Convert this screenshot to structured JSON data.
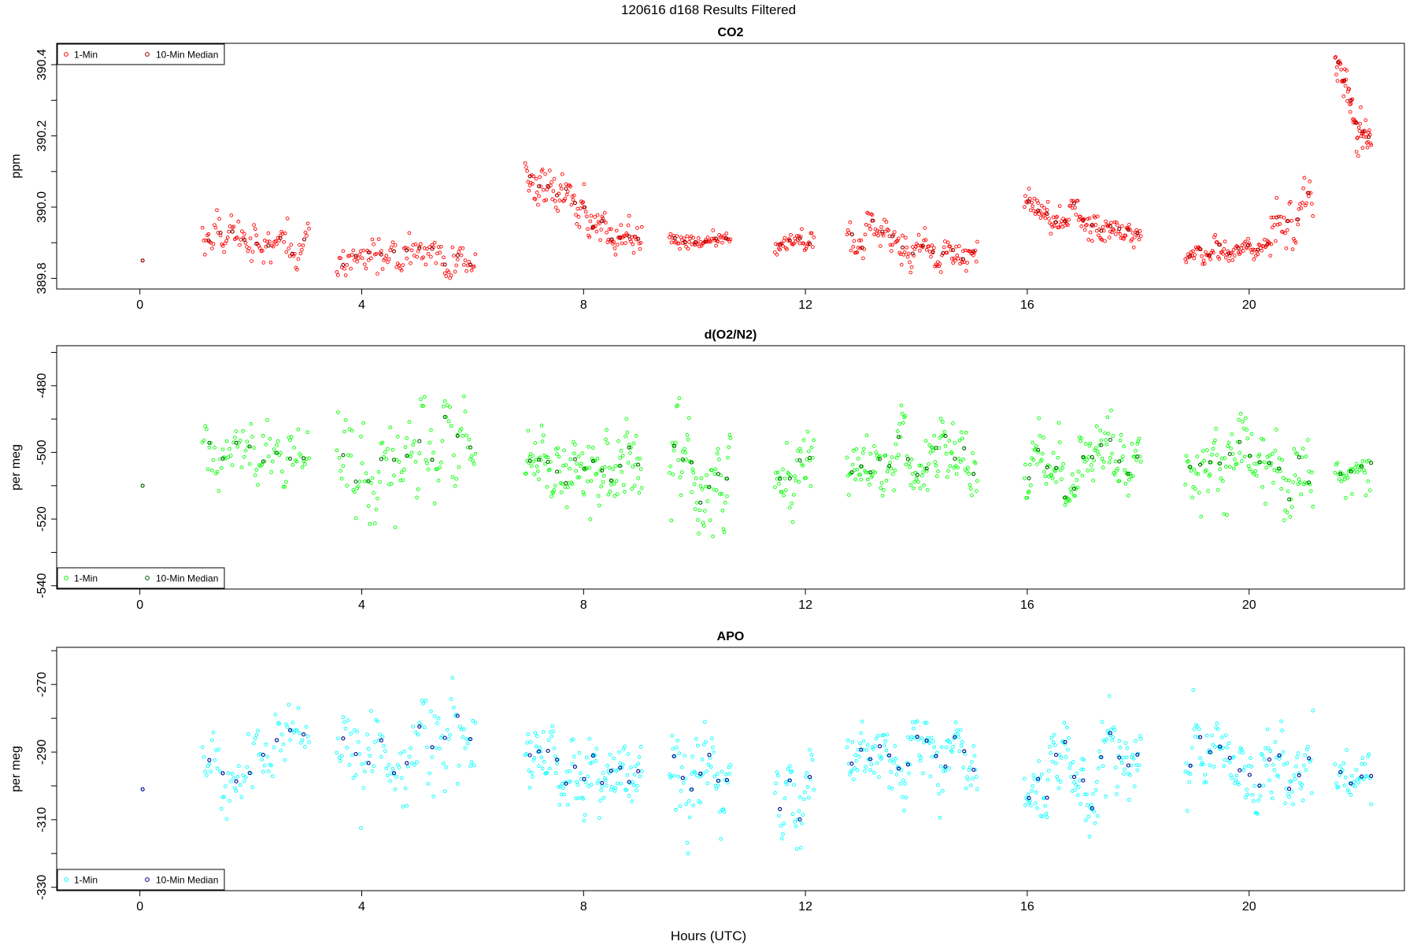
{
  "figure": {
    "title": "120616    d168    Results Filtered",
    "xlabel": "Hours (UTC)"
  },
  "colors": {
    "co2_1min": "#ff0000",
    "co2_median": "#8b0000",
    "o2_1min": "#00ff00",
    "o2_median": "#006400",
    "apo_1min": "#00ffff",
    "apo_median": "#00008b"
  },
  "chart_data": [
    {
      "type": "scatter",
      "title": "CO2",
      "xlabel": "",
      "ylabel": "ppm",
      "xlim": [
        -1.5,
        22.8
      ],
      "ylim": [
        389.77,
        390.46
      ],
      "xticks": [
        "0",
        "4",
        "8",
        "12",
        "16",
        "20"
      ],
      "yticks": [
        "389.8",
        "390.0",
        "390.2",
        "390.4"
      ],
      "legend": {
        "position": "top-left",
        "entries": [
          "1-Min",
          "10-Min Median"
        ]
      },
      "series": [
        {
          "name": "1-Min",
          "segments": [
            {
              "from": 0.05,
              "to": 0.05,
              "n": 1,
              "base": [
                389.85,
                389.85
              ],
              "noise": 0.0
            },
            {
              "from": 1.13,
              "to": 3.05,
              "n": 90,
              "base": [
                389.93,
                389.88
              ],
              "noise": 0.035
            },
            {
              "from": 3.55,
              "to": 6.05,
              "n": 110,
              "base": [
                389.85,
                389.87
              ],
              "noise": 0.03
            },
            {
              "from": 6.95,
              "to": 9.05,
              "n": 130,
              "base": [
                390.08,
                389.9
              ],
              "noise": 0.035
            },
            {
              "from": 9.55,
              "to": 10.65,
              "n": 60,
              "base": [
                389.92,
                389.89
              ],
              "noise": 0.015
            },
            {
              "from": 11.45,
              "to": 12.15,
              "n": 40,
              "base": [
                389.89,
                389.92
              ],
              "noise": 0.02
            },
            {
              "from": 12.75,
              "to": 15.1,
              "n": 130,
              "base": [
                389.92,
                389.86
              ],
              "noise": 0.03
            },
            {
              "from": 15.95,
              "to": 18.05,
              "n": 130,
              "base": [
                390.0,
                389.92
              ],
              "noise": 0.03
            },
            {
              "from": 18.85,
              "to": 20.4,
              "n": 90,
              "base": [
                389.87,
                389.89
              ],
              "noise": 0.02
            },
            {
              "from": 20.4,
              "to": 21.15,
              "n": 40,
              "base": [
                389.9,
                390.06
              ],
              "noise": 0.05
            },
            {
              "from": 21.55,
              "to": 22.2,
              "n": 60,
              "base": [
                390.38,
                390.17
              ],
              "noise": 0.035
            }
          ]
        },
        {
          "name": "10-Min Median",
          "median": true
        }
      ]
    },
    {
      "type": "scatter",
      "title": "d(O2/N2)",
      "xlabel": "",
      "ylabel": "per meg",
      "xlim": [
        -1.5,
        22.8
      ],
      "ylim": [
        -541,
        -468
      ],
      "xticks": [
        "0",
        "4",
        "8",
        "12",
        "16",
        "20"
      ],
      "yticks": [
        "-540",
        "-520",
        "-500",
        "-480"
      ],
      "legend": {
        "position": "bottom-left",
        "entries": [
          "1-Min",
          "10-Min Median"
        ]
      },
      "series": [
        {
          "name": "1-Min",
          "segments": [
            {
              "from": 0.05,
              "to": 0.05,
              "n": 1,
              "base": [
                -510,
                -510
              ],
              "noise": 0.0
            },
            {
              "from": 1.13,
              "to": 3.05,
              "n": 80,
              "base": [
                -503,
                -497
              ],
              "noise": 6
            },
            {
              "from": 3.55,
              "to": 6.05,
              "n": 110,
              "base": [
                -502,
                -500
              ],
              "noise": 9
            },
            {
              "from": 6.95,
              "to": 9.05,
              "n": 130,
              "base": [
                -503,
                -507
              ],
              "noise": 7
            },
            {
              "from": 9.55,
              "to": 10.65,
              "n": 70,
              "base": [
                -510,
                -505
              ],
              "noise": 9
            },
            {
              "from": 11.45,
              "to": 12.15,
              "n": 40,
              "base": [
                -510,
                -505
              ],
              "noise": 7
            },
            {
              "from": 12.75,
              "to": 15.1,
              "n": 140,
              "base": [
                -505,
                -502
              ],
              "noise": 6
            },
            {
              "from": 15.95,
              "to": 18.05,
              "n": 130,
              "base": [
                -507,
                -502
              ],
              "noise": 7
            },
            {
              "from": 18.85,
              "to": 21.15,
              "n": 130,
              "base": [
                -503,
                -508
              ],
              "noise": 8
            },
            {
              "from": 21.55,
              "to": 22.2,
              "n": 35,
              "base": [
                -505,
                -508
              ],
              "noise": 5
            }
          ]
        },
        {
          "name": "10-Min Median",
          "median": true
        }
      ]
    },
    {
      "type": "scatter",
      "title": "APO",
      "xlabel": "Hours (UTC)",
      "ylabel": "per meg",
      "xlim": [
        -1.5,
        22.8
      ],
      "ylim": [
        -331,
        -259
      ],
      "xticks": [
        "0",
        "4",
        "8",
        "12",
        "16",
        "20"
      ],
      "yticks": [
        "-330",
        "-310",
        "-290",
        "-270"
      ],
      "legend": {
        "position": "bottom-left",
        "entries": [
          "1-Min",
          "10-Min Median"
        ]
      },
      "series": [
        {
          "name": "1-Min",
          "segments": [
            {
              "from": 0.05,
              "to": 0.05,
              "n": 1,
              "base": [
                -301,
                -301
              ],
              "noise": 0.0
            },
            {
              "from": 1.13,
              "to": 3.05,
              "n": 80,
              "base": [
                -294,
                -287
              ],
              "noise": 6
            },
            {
              "from": 3.55,
              "to": 6.05,
              "n": 110,
              "base": [
                -293,
                -291
              ],
              "noise": 9
            },
            {
              "from": 6.95,
              "to": 9.05,
              "n": 130,
              "base": [
                -293,
                -298
              ],
              "noise": 7
            },
            {
              "from": 9.55,
              "to": 10.65,
              "n": 70,
              "base": [
                -300,
                -292
              ],
              "noise": 9
            },
            {
              "from": 11.45,
              "to": 12.15,
              "n": 40,
              "base": [
                -301,
                -295
              ],
              "noise": 7
            },
            {
              "from": 12.75,
              "to": 15.1,
              "n": 140,
              "base": [
                -295,
                -293
              ],
              "noise": 6
            },
            {
              "from": 15.95,
              "to": 18.05,
              "n": 130,
              "base": [
                -297,
                -292
              ],
              "noise": 7
            },
            {
              "from": 18.85,
              "to": 21.15,
              "n": 130,
              "base": [
                -292,
                -298
              ],
              "noise": 8
            },
            {
              "from": 21.55,
              "to": 22.2,
              "n": 35,
              "base": [
                -292,
                -297
              ],
              "noise": 5
            }
          ]
        },
        {
          "name": "10-Min Median",
          "median": true
        }
      ]
    }
  ]
}
